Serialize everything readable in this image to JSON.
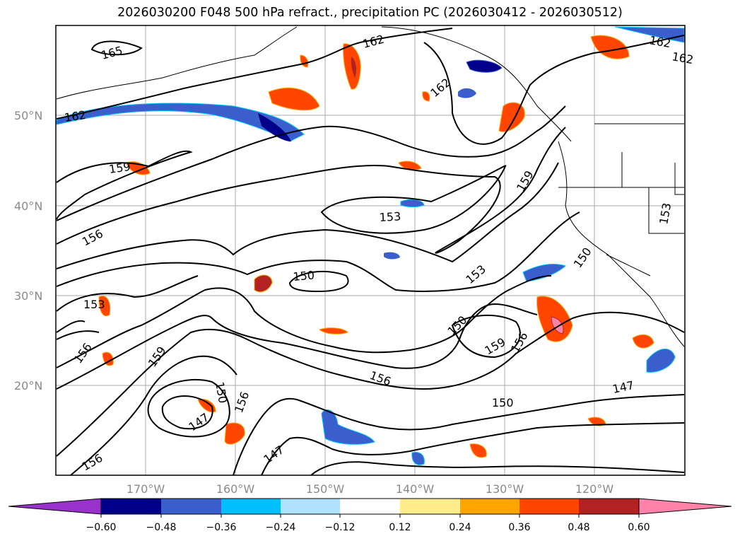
{
  "title": "2026030200 F048 500 hPa refract., precipitation PC (2026030412 - 2026030512)",
  "map": {
    "lat_labels": [
      "50°N",
      "40°N",
      "30°N",
      "20°N"
    ],
    "lon_labels": [
      "170°W",
      "160°W",
      "150°W",
      "140°W",
      "130°W",
      "120°W"
    ],
    "contour_labels": [
      "165",
      "162",
      "162",
      "162",
      "162",
      "162",
      "159",
      "159",
      "159",
      "159",
      "156",
      "156",
      "156",
      "156",
      "156",
      "156",
      "153",
      "153",
      "153",
      "153",
      "150",
      "150",
      "150",
      "150",
      "150",
      "147",
      "147",
      "147"
    ]
  },
  "colorbar": {
    "ticks": [
      "−0.60",
      "−0.48",
      "−0.36",
      "−0.24",
      "−0.12",
      "0.12",
      "0.24",
      "0.36",
      "0.48",
      "0.60"
    ],
    "colors": [
      "#9932cc",
      "#00008b",
      "#3a5fcd",
      "#00bfff",
      "#b0e2ff",
      "#ffffff",
      "#ffec8b",
      "#ffa500",
      "#ff4500",
      "#b22222",
      "#ff82ab"
    ]
  }
}
